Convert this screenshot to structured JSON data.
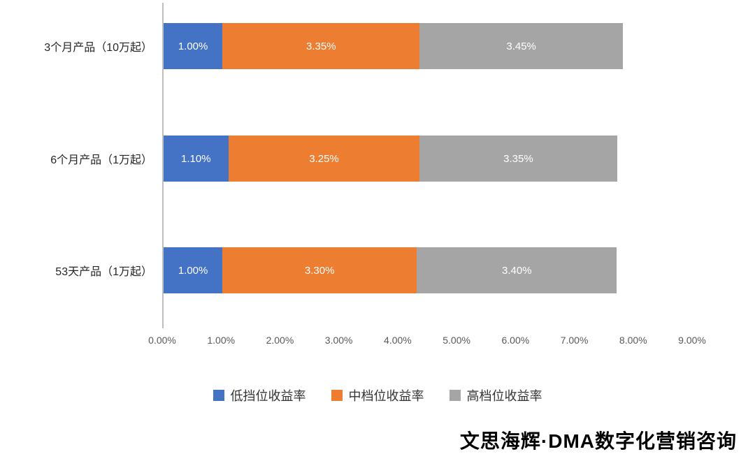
{
  "chart_data": {
    "type": "bar",
    "orientation": "horizontal",
    "stacked": true,
    "title": "",
    "xlabel": "",
    "ylabel": "",
    "xlim": [
      0,
      9
    ],
    "grid": false,
    "legend_position": "bottom",
    "categories": [
      "3个月产品（10万起）",
      "6个月产品（1万起）",
      "53天产品（1万起）"
    ],
    "series": [
      {
        "name": "低挡位收益率",
        "color": "#4472C4",
        "values": [
          1.0,
          1.1,
          1.0
        ]
      },
      {
        "name": "中档位收益率",
        "color": "#ED7D31",
        "values": [
          3.35,
          3.25,
          3.3
        ]
      },
      {
        "name": "高档位收益率",
        "color": "#A5A5A5",
        "values": [
          3.45,
          3.35,
          3.4
        ]
      }
    ],
    "data_labels": [
      [
        "1.00%",
        "3.35%",
        "3.45%"
      ],
      [
        "1.10%",
        "3.25%",
        "3.35%"
      ],
      [
        "1.00%",
        "3.30%",
        "3.40%"
      ]
    ],
    "x_ticks": [
      "0.00%",
      "1.00%",
      "2.00%",
      "3.00%",
      "4.00%",
      "5.00%",
      "6.00%",
      "7.00%",
      "8.00%",
      "9.00%"
    ]
  },
  "caption": "文思海辉·DMA数字化营销咨询"
}
